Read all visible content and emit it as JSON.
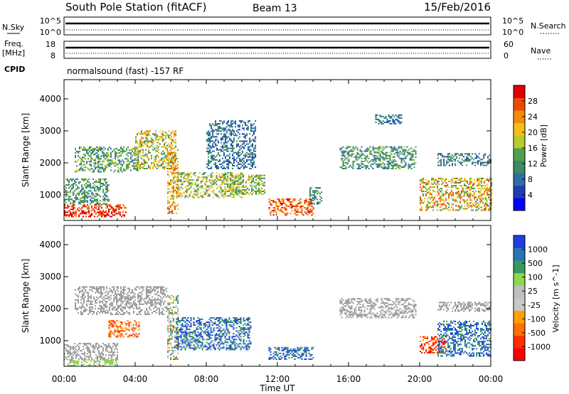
{
  "header": {
    "station": "South Pole Station (fitACF)",
    "beam": "Beam 13",
    "date": "15/Feb/2016"
  },
  "left_labels": {
    "nsky": "N.Sky",
    "freq_line1": "Freq.",
    "freq_line2": "[MHz]",
    "cpid": "CPID",
    "nsky_top": "10^5",
    "nsky_bottom": "10^0",
    "freq_top": "18",
    "freq_bottom": "8"
  },
  "right_labels": {
    "nsearch": "N.Search",
    "nave": "Nave",
    "nsearch_top": "10^5",
    "nsearch_bottom": "10^0",
    "nave_top": "60",
    "nave_bottom": "0"
  },
  "cpid_text": "normalsound (fast) -157 RF",
  "colors": {
    "power": [
      "#0000ff",
      "#1e3cb4",
      "#2e6ea6",
      "#3d8a63",
      "#52a04e",
      "#b7cc2a",
      "#f3c018",
      "#f58a0b",
      "#ee4a05",
      "#e00000"
    ],
    "velocity": [
      "#ff0000",
      "#ff3000",
      "#ff7000",
      "#ffa200",
      "#c8c8c8",
      "#bfbfbf",
      "#8ed64d",
      "#389a5a",
      "#2c73b3",
      "#1e3ee0"
    ],
    "ground": "#9b9b9b"
  },
  "chart_data": [
    {
      "type": "heatmap",
      "name": "Power",
      "xlabel": "",
      "ylabel": "Slant Range [km]",
      "xlim": [
        0,
        24
      ],
      "ylim": [
        200,
        4600
      ],
      "yticks": [
        1000,
        2000,
        3000,
        4000
      ],
      "colorbar_label": "Power [dB]",
      "colorbar_ticks": [
        "28",
        "24",
        "20",
        "16",
        "12",
        "8",
        "4"
      ],
      "range": [
        0,
        30
      ],
      "regions": [
        {
          "t": [
            0.0,
            3.5
          ],
          "r": [
            300,
            700
          ],
          "level": 27,
          "spread": 4
        },
        {
          "t": [
            0.0,
            2.5
          ],
          "r": [
            700,
            1500
          ],
          "level": 11,
          "spread": 5
        },
        {
          "t": [
            0.6,
            4.2
          ],
          "r": [
            1700,
            2500
          ],
          "level": 12,
          "spread": 6
        },
        {
          "t": [
            4.0,
            6.3
          ],
          "r": [
            1800,
            3000
          ],
          "level": 17,
          "spread": 7
        },
        {
          "t": [
            5.8,
            6.4
          ],
          "r": [
            400,
            2400
          ],
          "level": 20,
          "spread": 7
        },
        {
          "t": [
            6.3,
            10.0
          ],
          "r": [
            900,
            1700
          ],
          "level": 16,
          "spread": 6
        },
        {
          "t": [
            8.0,
            10.8
          ],
          "r": [
            1800,
            3300
          ],
          "level": 8,
          "spread": 4
        },
        {
          "t": [
            9.0,
            11.3
          ],
          "r": [
            1000,
            1600
          ],
          "level": 15,
          "spread": 5
        },
        {
          "t": [
            11.5,
            14.0
          ],
          "r": [
            350,
            850
          ],
          "level": 25,
          "spread": 4
        },
        {
          "t": [
            13.8,
            14.5
          ],
          "r": [
            700,
            1200
          ],
          "level": 9,
          "spread": 4
        },
        {
          "t": [
            15.5,
            19.8
          ],
          "r": [
            1800,
            2500
          ],
          "level": 11,
          "spread": 5
        },
        {
          "t": [
            17.5,
            19.0
          ],
          "r": [
            3200,
            3500
          ],
          "level": 8,
          "spread": 3
        },
        {
          "t": [
            20.0,
            24.0
          ],
          "r": [
            500,
            1500
          ],
          "level": 19,
          "spread": 8
        },
        {
          "t": [
            21.0,
            24.0
          ],
          "r": [
            1900,
            2300
          ],
          "level": 9,
          "spread": 4
        }
      ]
    },
    {
      "type": "heatmap",
      "name": "Velocity",
      "xlabel": "Time UT",
      "ylabel": "Slant Range [km]",
      "xlim": [
        0,
        24
      ],
      "ylim": [
        200,
        4600
      ],
      "xticks": [
        "00:00",
        "04:00",
        "08:00",
        "12:00",
        "16:00",
        "20:00",
        "00:00"
      ],
      "yticks": [
        1000,
        2000,
        3000,
        4000
      ],
      "colorbar_label": "Velocity [m s^-1]",
      "colorbar_ticks": [
        "1000",
        "500",
        "100",
        "25",
        "-25",
        "-100",
        "-500",
        "-1000"
      ],
      "regions": [
        {
          "t": [
            0.0,
            3.0
          ],
          "r": [
            300,
            900
          ],
          "kind": "ground"
        },
        {
          "t": [
            0.2,
            3.0
          ],
          "r": [
            200,
            400
          ],
          "kind": "slow_pos"
        },
        {
          "t": [
            0.6,
            5.8
          ],
          "r": [
            1800,
            2700
          ],
          "kind": "ground"
        },
        {
          "t": [
            2.5,
            4.2
          ],
          "r": [
            1100,
            1600
          ],
          "kind": "neg"
        },
        {
          "t": [
            5.8,
            6.4
          ],
          "r": [
            400,
            2400
          ],
          "kind": "mixed"
        },
        {
          "t": [
            6.3,
            10.5
          ],
          "r": [
            700,
            1700
          ],
          "kind": "pos"
        },
        {
          "t": [
            11.5,
            14.0
          ],
          "r": [
            400,
            800
          ],
          "kind": "pos"
        },
        {
          "t": [
            15.5,
            19.8
          ],
          "r": [
            1700,
            2300
          ],
          "kind": "ground"
        },
        {
          "t": [
            20.0,
            21.5
          ],
          "r": [
            600,
            1100
          ],
          "kind": "neg_strong"
        },
        {
          "t": [
            21.0,
            24.0
          ],
          "r": [
            500,
            1600
          ],
          "kind": "pos"
        },
        {
          "t": [
            21.0,
            24.0
          ],
          "r": [
            1900,
            2200
          ],
          "kind": "ground"
        }
      ]
    }
  ]
}
